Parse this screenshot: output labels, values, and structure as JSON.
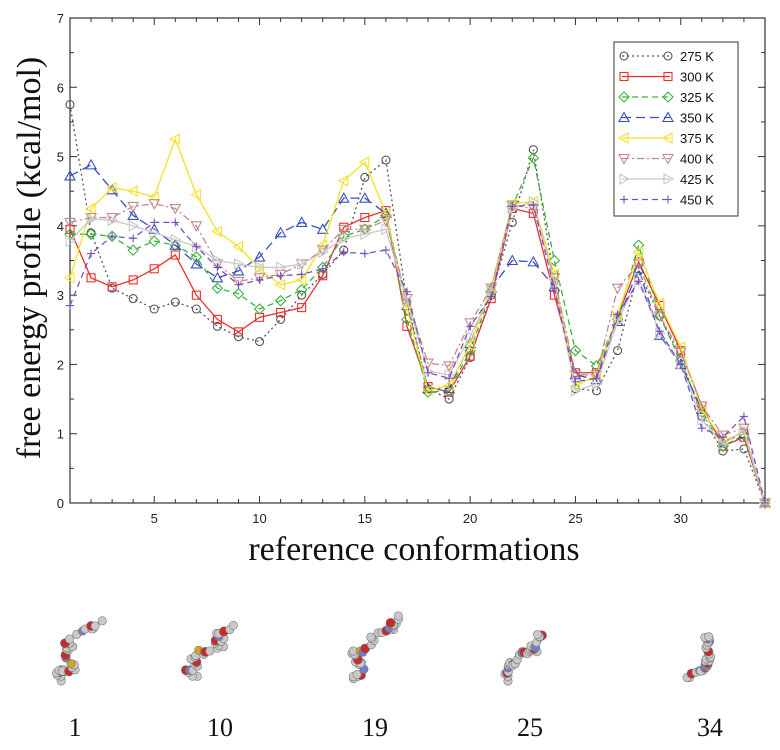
{
  "chart_data": {
    "type": "line",
    "xlabel": "reference conformations",
    "ylabel": "free energy profile (kcal/mol)",
    "xlim": [
      1,
      34
    ],
    "ylim": [
      0,
      7
    ],
    "xticks": [
      5,
      10,
      15,
      20,
      25,
      30
    ],
    "yticks": [
      0,
      1,
      2,
      3,
      4,
      5,
      6,
      7
    ],
    "grid": false,
    "legend_position": "top-right",
    "x": [
      1,
      2,
      3,
      4,
      5,
      6,
      7,
      8,
      9,
      10,
      11,
      12,
      13,
      14,
      15,
      16,
      17,
      18,
      19,
      20,
      21,
      22,
      23,
      24,
      25,
      26,
      27,
      28,
      29,
      30,
      31,
      32,
      33,
      34
    ],
    "series": [
      {
        "name": "275 K",
        "color": "#555555",
        "dash": "2,3",
        "marker": "circle",
        "values": [
          5.75,
          3.9,
          3.1,
          2.95,
          2.8,
          2.9,
          2.8,
          2.55,
          2.4,
          2.33,
          2.65,
          3.0,
          3.3,
          3.65,
          4.7,
          4.95,
          2.9,
          1.65,
          1.5,
          2.1,
          3.0,
          4.05,
          5.1,
          3.2,
          1.65,
          1.62,
          2.2,
          3.35,
          2.7,
          2.1,
          1.25,
          0.75,
          0.78,
          0.0
        ]
      },
      {
        "name": "300 K",
        "color": "#e8302c",
        "dash": "",
        "marker": "square",
        "values": [
          3.95,
          3.25,
          3.12,
          3.22,
          3.38,
          3.58,
          3.0,
          2.65,
          2.47,
          2.68,
          2.75,
          2.82,
          3.28,
          3.98,
          4.12,
          4.22,
          2.55,
          1.68,
          1.6,
          2.12,
          2.95,
          4.25,
          4.18,
          3.0,
          1.88,
          1.88,
          2.68,
          3.48,
          2.85,
          2.2,
          1.4,
          0.82,
          0.95,
          0.0
        ]
      },
      {
        "name": "325 K",
        "color": "#3cb23c",
        "dash": "6,4",
        "marker": "diamond",
        "values": [
          3.88,
          3.88,
          3.85,
          3.65,
          3.78,
          3.72,
          3.55,
          3.1,
          3.02,
          2.8,
          2.92,
          3.08,
          3.4,
          3.85,
          3.95,
          4.15,
          2.65,
          1.6,
          1.62,
          2.2,
          3.05,
          4.28,
          4.98,
          3.5,
          2.2,
          1.98,
          2.65,
          3.72,
          2.7,
          2.05,
          1.3,
          0.82,
          0.98,
          0.0
        ]
      },
      {
        "name": "350 K",
        "color": "#3a4fb8",
        "dash": "9,5",
        "marker": "triangle-up",
        "values": [
          4.72,
          4.88,
          4.52,
          4.15,
          3.95,
          3.72,
          3.45,
          3.25,
          3.35,
          3.55,
          3.9,
          4.05,
          3.95,
          4.4,
          4.4,
          4.18,
          2.85,
          1.65,
          1.65,
          2.3,
          3.1,
          3.5,
          3.48,
          3.12,
          1.85,
          1.78,
          2.62,
          3.38,
          2.42,
          2.0,
          1.35,
          0.88,
          1.0,
          0.0
        ]
      },
      {
        "name": "375 K",
        "color": "#f2e227",
        "dash": "",
        "marker": "triangle-left",
        "values": [
          3.25,
          4.25,
          4.55,
          4.5,
          4.42,
          5.25,
          4.45,
          3.92,
          3.7,
          3.38,
          3.15,
          3.22,
          3.72,
          4.65,
          4.92,
          4.18,
          2.82,
          1.62,
          1.7,
          2.28,
          3.12,
          4.32,
          4.35,
          3.3,
          1.68,
          1.85,
          2.72,
          3.62,
          2.88,
          2.25,
          1.35,
          0.9,
          1.02,
          0.0
        ]
      },
      {
        "name": "400 K",
        "color": "#c48a8a",
        "dash": "7,3,2,3",
        "marker": "triangle-down",
        "values": [
          4.05,
          4.12,
          4.12,
          4.28,
          4.32,
          4.25,
          4.0,
          3.45,
          3.2,
          3.25,
          3.3,
          3.45,
          3.65,
          3.95,
          3.95,
          4.08,
          2.95,
          2.02,
          1.98,
          2.6,
          3.1,
          4.3,
          4.25,
          3.25,
          1.85,
          1.85,
          3.1,
          3.45,
          2.7,
          2.18,
          1.4,
          0.98,
          1.08,
          0.0
        ]
      },
      {
        "name": "425 K",
        "color": "#c8c8c8",
        "dash": "",
        "marker": "triangle-right",
        "values": [
          3.78,
          4.1,
          4.08,
          4.0,
          3.9,
          3.8,
          3.7,
          3.5,
          3.45,
          3.4,
          3.4,
          3.45,
          3.62,
          3.82,
          3.88,
          3.95,
          2.92,
          1.9,
          1.85,
          2.4,
          3.05,
          4.25,
          4.35,
          3.18,
          1.62,
          1.72,
          2.62,
          3.25,
          2.45,
          2.0,
          1.2,
          0.85,
          1.05,
          0.0
        ]
      },
      {
        "name": "450 K",
        "color": "#7b4fc0",
        "dash": "6,4",
        "marker": "plus",
        "values": [
          2.85,
          3.6,
          3.85,
          3.82,
          4.05,
          4.05,
          3.7,
          3.4,
          3.15,
          3.22,
          3.28,
          3.3,
          3.38,
          3.62,
          3.6,
          3.65,
          3.05,
          1.88,
          1.8,
          2.55,
          2.98,
          4.28,
          4.3,
          3.1,
          1.75,
          1.8,
          2.72,
          3.2,
          2.48,
          2.0,
          1.08,
          0.95,
          1.25,
          0.0
        ]
      }
    ]
  },
  "conformations": [
    {
      "label": "1"
    },
    {
      "label": "10"
    },
    {
      "label": "19"
    },
    {
      "label": "25"
    },
    {
      "label": "34"
    }
  ]
}
